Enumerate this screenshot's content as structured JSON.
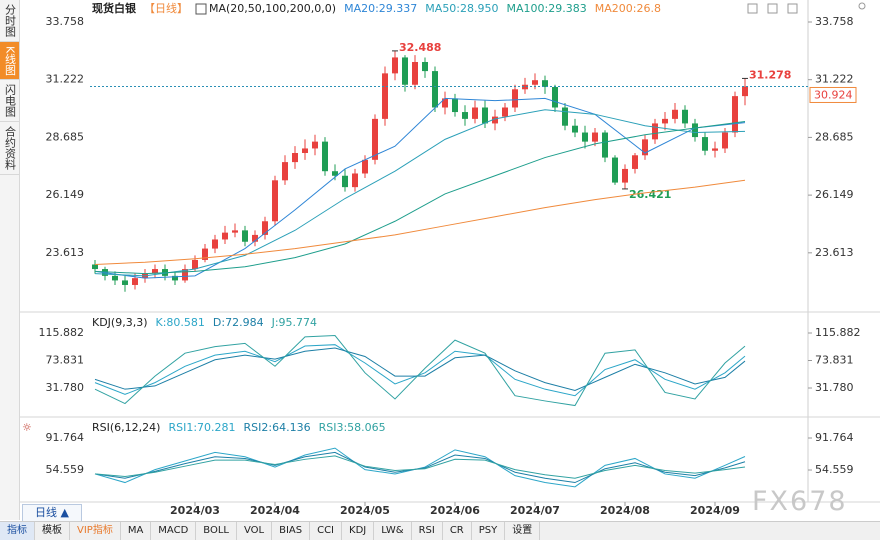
{
  "sidebar": [
    "分时图",
    "K线图",
    "闪电图",
    "合约资料"
  ],
  "period_button": "日线 ▲",
  "toolbar": [
    "指标",
    "模板",
    "VIP指标",
    "MA",
    "MACD",
    "BOLL",
    "VOL",
    "BIAS",
    "CCI",
    "KDJ",
    "LW&",
    "RSI",
    "CR",
    "PSY",
    "设置"
  ],
  "watermark": "FX678",
  "chart_data": [
    {
      "type": "candlestick",
      "title": "现货白银",
      "subtitle": "【日线】",
      "indicator": "MA(20,50,100,200,0,0)",
      "categories": [
        null,
        null,
        null,
        null,
        null,
        null,
        null,
        null,
        null,
        null,
        "2024/03",
        null,
        null,
        null,
        null,
        null,
        null,
        null,
        "2024/04",
        null,
        null,
        null,
        null,
        null,
        null,
        null,
        null,
        "2024/05",
        null,
        null,
        null,
        null,
        null,
        null,
        null,
        null,
        "2024/06",
        null,
        null,
        null,
        null,
        null,
        null,
        null,
        "2024/07",
        null,
        null,
        null,
        null,
        null,
        null,
        null,
        null,
        "2024/08",
        null,
        null,
        null,
        null,
        null,
        null,
        null,
        null,
        "2024/09",
        null,
        null,
        null
      ],
      "open": [
        23.1,
        22.9,
        22.6,
        22.4,
        22.2,
        22.5,
        22.7,
        22.9,
        22.6,
        22.4,
        22.9,
        23.3,
        23.8,
        24.2,
        24.5,
        24.6,
        24.1,
        24.4,
        25.0,
        26.8,
        27.6,
        28.0,
        28.2,
        28.5,
        27.2,
        27.0,
        26.5,
        27.1,
        27.7,
        29.5,
        31.5,
        32.2,
        31.0,
        32.0,
        31.6,
        30.0,
        30.4,
        29.8,
        29.5,
        30.0,
        29.3,
        29.6,
        30.0,
        30.8,
        31.0,
        31.2,
        30.9,
        30.0,
        29.2,
        28.9,
        28.5,
        28.9,
        27.8,
        26.7,
        27.3,
        27.9,
        28.6,
        29.3,
        29.5,
        29.9,
        29.3,
        28.7,
        28.1,
        28.2,
        28.9,
        30.5
      ],
      "high": [
        23.3,
        23.0,
        22.8,
        22.6,
        22.7,
        22.9,
        23.1,
        23.1,
        22.8,
        23.1,
        23.5,
        24.0,
        24.4,
        24.8,
        24.9,
        24.8,
        24.6,
        25.2,
        27.0,
        27.9,
        28.3,
        28.6,
        28.8,
        28.7,
        27.5,
        27.3,
        27.3,
        27.9,
        29.7,
        31.8,
        32.488,
        32.3,
        32.3,
        32.2,
        31.8,
        30.7,
        30.6,
        30.1,
        30.3,
        30.3,
        29.9,
        30.2,
        31.0,
        31.3,
        31.5,
        31.4,
        31.0,
        30.2,
        29.5,
        29.2,
        29.1,
        29.0,
        27.9,
        27.5,
        28.0,
        28.8,
        29.5,
        29.8,
        30.2,
        30.1,
        29.5,
        28.9,
        28.5,
        29.1,
        30.7,
        31.278
      ],
      "low": [
        22.7,
        22.4,
        22.2,
        21.9,
        22.0,
        22.3,
        22.5,
        22.4,
        22.2,
        22.3,
        22.8,
        23.2,
        23.6,
        24.0,
        24.3,
        23.9,
        23.9,
        24.2,
        24.8,
        26.6,
        27.3,
        27.7,
        27.9,
        27.0,
        26.8,
        26.3,
        26.3,
        26.9,
        27.5,
        29.2,
        31.2,
        30.7,
        30.8,
        31.3,
        29.8,
        29.7,
        29.6,
        29.2,
        29.3,
        29.1,
        29.0,
        29.4,
        29.8,
        30.6,
        30.8,
        30.6,
        29.8,
        29.0,
        28.7,
        28.2,
        28.3,
        27.6,
        26.6,
        26.421,
        27.1,
        27.7,
        28.4,
        29.0,
        29.3,
        29.1,
        28.5,
        27.9,
        27.8,
        28.0,
        28.7,
        30.1
      ],
      "close": [
        22.9,
        22.6,
        22.4,
        22.2,
        22.5,
        22.7,
        22.9,
        22.6,
        22.4,
        22.9,
        23.3,
        23.8,
        24.2,
        24.5,
        24.6,
        24.1,
        24.4,
        25.0,
        26.8,
        27.6,
        28.0,
        28.2,
        28.5,
        27.2,
        27.0,
        26.5,
        27.1,
        27.7,
        29.5,
        31.5,
        32.2,
        31.0,
        32.0,
        31.6,
        30.0,
        30.4,
        29.8,
        29.5,
        30.0,
        29.3,
        29.6,
        30.0,
        30.8,
        31.0,
        31.2,
        30.9,
        30.0,
        29.2,
        28.9,
        28.5,
        28.9,
        27.8,
        26.7,
        27.3,
        27.9,
        28.6,
        29.3,
        29.5,
        29.9,
        29.3,
        28.7,
        28.1,
        28.2,
        28.9,
        30.5,
        30.924
      ],
      "up_color": "#e8413e",
      "down_color": "#1f9d55",
      "series": [
        {
          "name": "MA20:29.337",
          "color": "#2f86d6",
          "x": [
            0,
            5,
            10,
            15,
            20,
            25,
            30,
            35,
            40,
            45,
            50,
            55,
            60,
            65
          ],
          "values": [
            22.8,
            22.5,
            22.6,
            23.8,
            25.5,
            27.3,
            28.3,
            30.4,
            30.3,
            30.4,
            29.7,
            28.0,
            29.1,
            29.337
          ]
        },
        {
          "name": "MA50:28.950",
          "color": "#2ba0b8",
          "x": [
            0,
            5,
            10,
            15,
            20,
            25,
            30,
            35,
            40,
            45,
            50,
            55,
            60,
            65
          ],
          "values": [
            22.7,
            22.6,
            22.9,
            23.5,
            24.6,
            26.0,
            27.2,
            28.6,
            29.5,
            29.9,
            29.7,
            29.2,
            28.9,
            28.95
          ]
        },
        {
          "name": "MA100:29.383",
          "color": "#1e9e8c",
          "x": [
            0,
            5,
            10,
            15,
            20,
            25,
            30,
            35,
            40,
            45,
            50,
            55,
            60,
            65
          ],
          "values": [
            22.8,
            22.7,
            22.8,
            23.0,
            23.4,
            24.0,
            25.0,
            26.2,
            27.0,
            27.8,
            28.4,
            28.8,
            29.1,
            29.383
          ]
        },
        {
          "name": "MA200:26.8",
          "color": "#f08a3c",
          "x": [
            0,
            5,
            10,
            15,
            20,
            25,
            30,
            35,
            40,
            45,
            50,
            55,
            60,
            65
          ],
          "values": [
            23.1,
            23.2,
            23.35,
            23.55,
            23.8,
            24.1,
            24.4,
            24.8,
            25.2,
            25.6,
            25.95,
            26.25,
            26.5,
            26.8
          ]
        }
      ],
      "annotations": [
        {
          "x": 30,
          "value": 32.488,
          "color": "#e8413e"
        },
        {
          "x": 53,
          "value": 26.421,
          "color": "#1f9d55"
        },
        {
          "x": 65,
          "value": 31.278,
          "color": "#e8413e"
        }
      ],
      "last": 30.924,
      "ylim": [
        21.1,
        34.285
      ],
      "yticks": [
        33.758,
        31.222,
        28.685,
        26.149,
        23.613
      ]
    },
    {
      "type": "line",
      "title": "KDJ(9,3,3)",
      "series": [
        {
          "name": "K:80.581",
          "color": "#2ca6c8",
          "x": [
            0,
            3,
            6,
            9,
            12,
            15,
            18,
            21,
            24,
            27,
            30,
            33,
            36,
            39,
            42,
            45,
            48,
            51,
            54,
            57,
            60,
            63,
            65
          ],
          "values": [
            40,
            22,
            40,
            65,
            82,
            88,
            72,
            96,
            98,
            70,
            38,
            55,
            88,
            82,
            45,
            30,
            20,
            60,
            75,
            45,
            30,
            55,
            80.581
          ]
        },
        {
          "name": "D:72.984",
          "color": "#1d7fa6",
          "x": [
            0,
            3,
            6,
            9,
            12,
            15,
            18,
            21,
            24,
            27,
            30,
            33,
            36,
            39,
            42,
            45,
            48,
            51,
            54,
            57,
            60,
            63,
            65
          ],
          "values": [
            45,
            30,
            35,
            55,
            75,
            82,
            76,
            88,
            93,
            80,
            50,
            50,
            78,
            82,
            58,
            40,
            28,
            48,
            68,
            55,
            38,
            48,
            72.984
          ]
        },
        {
          "name": "J:95.774",
          "color": "#31a2a2",
          "x": [
            0,
            3,
            6,
            9,
            12,
            15,
            18,
            21,
            24,
            27,
            30,
            33,
            36,
            39,
            42,
            45,
            48,
            51,
            54,
            57,
            60,
            63,
            65
          ],
          "values": [
            30,
            8,
            50,
            85,
            95,
            100,
            65,
            110,
            112,
            55,
            15,
            62,
            105,
            85,
            20,
            12,
            5,
            85,
            90,
            25,
            15,
            70,
            95.774
          ]
        }
      ],
      "ylim": [
        -9.5,
        143.4
      ],
      "yticks": [
        115.882,
        73.831,
        {
          "value": 31.78,
          "label": "31.780"
        }
      ]
    },
    {
      "type": "line",
      "title": "RSI(6,12,24)",
      "series": [
        {
          "name": "RSI1:70.281",
          "color": "#2ca6c8",
          "x": [
            0,
            3,
            6,
            9,
            12,
            15,
            18,
            21,
            24,
            27,
            30,
            33,
            36,
            39,
            42,
            45,
            48,
            51,
            54,
            57,
            60,
            63,
            65
          ],
          "values": [
            50,
            40,
            55,
            65,
            75,
            70,
            58,
            72,
            80,
            55,
            50,
            58,
            78,
            70,
            48,
            40,
            35,
            60,
            68,
            50,
            45,
            60,
            70.281
          ]
        },
        {
          "name": "RSI2:64.136",
          "color": "#1d7fa6",
          "x": [
            0,
            3,
            6,
            9,
            12,
            15,
            18,
            21,
            24,
            27,
            30,
            33,
            36,
            39,
            42,
            45,
            48,
            51,
            54,
            57,
            60,
            63,
            65
          ],
          "values": [
            50,
            45,
            53,
            62,
            70,
            68,
            60,
            70,
            75,
            58,
            52,
            57,
            72,
            68,
            52,
            45,
            40,
            56,
            63,
            52,
            48,
            57,
            64.136
          ]
        },
        {
          "name": "RSI3:58.065",
          "color": "#31a2a2",
          "x": [
            0,
            3,
            6,
            9,
            12,
            15,
            18,
            21,
            24,
            27,
            30,
            33,
            36,
            39,
            42,
            45,
            48,
            51,
            54,
            57,
            60,
            63,
            65
          ],
          "values": [
            50,
            47,
            52,
            59,
            66,
            66,
            61,
            67,
            71,
            59,
            54,
            56,
            67,
            66,
            55,
            49,
            45,
            54,
            60,
            54,
            51,
            55,
            58.065
          ]
        }
      ],
      "ylim": [
        19.7,
        112.7
      ],
      "yticks": [
        91.764,
        54.559
      ]
    }
  ]
}
